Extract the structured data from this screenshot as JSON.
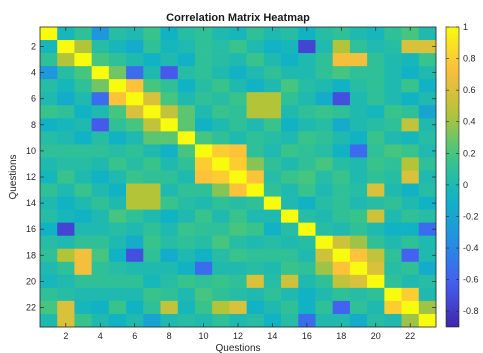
{
  "chart_data": {
    "type": "heatmap",
    "title": "Correlation Matrix Heatmap",
    "xlabel": "Questions",
    "ylabel": "Questions",
    "n": 23,
    "x_ticks": [
      2,
      4,
      6,
      8,
      10,
      12,
      14,
      16,
      18,
      20,
      22
    ],
    "y_ticks": [
      2,
      4,
      6,
      8,
      10,
      12,
      14,
      16,
      18,
      20,
      22
    ],
    "colorbar": {
      "min": -0.9,
      "max": 1.0,
      "ticks": [
        1,
        0.8,
        0.6,
        0.4,
        0.2,
        0,
        -0.2,
        -0.4,
        -0.6,
        -0.8
      ],
      "tick_labels": [
        "1",
        "0.8",
        "0.6",
        "0.4",
        "0.2",
        "0",
        "-0.2",
        "-0.4",
        "-0.6",
        "-0.8"
      ]
    },
    "matrix": [
      [
        1.0,
        -0.05,
        0.1,
        -0.3,
        0.05,
        0.0,
        0.15,
        -0.1,
        0.05,
        0.1,
        0.0,
        -0.05,
        0.1,
        0.0,
        0.05,
        -0.1,
        0.05,
        0.1,
        0.0,
        -0.05,
        0.1,
        0.2,
        0.0
      ],
      [
        -0.05,
        1.0,
        0.45,
        0.05,
        -0.05,
        -0.15,
        0.1,
        -0.05,
        0.0,
        0.1,
        0.05,
        0.15,
        0.0,
        -0.1,
        -0.05,
        -0.75,
        0.0,
        0.45,
        0.1,
        0.0,
        0.05,
        0.6,
        0.6
      ],
      [
        0.1,
        0.45,
        1.0,
        0.2,
        0.1,
        0.0,
        -0.1,
        0.0,
        -0.1,
        0.1,
        0.05,
        0.0,
        0.15,
        0.0,
        -0.1,
        0.0,
        0.1,
        0.7,
        0.7,
        0.1,
        0.0,
        -0.05,
        0.15
      ],
      [
        -0.3,
        0.05,
        0.2,
        1.0,
        0.3,
        -0.55,
        0.0,
        -0.65,
        0.05,
        0.1,
        0.0,
        -0.1,
        0.0,
        0.1,
        0.0,
        0.0,
        0.1,
        0.2,
        0.1,
        0.1,
        0.0,
        -0.1,
        0.0
      ],
      [
        0.05,
        -0.05,
        0.1,
        0.3,
        1.0,
        0.75,
        0.2,
        0.1,
        -0.1,
        0.05,
        0.15,
        0.0,
        -0.1,
        0.0,
        0.2,
        0.05,
        0.0,
        -0.1,
        0.05,
        0.1,
        0.0,
        0.15,
        -0.1
      ],
      [
        0.0,
        -0.15,
        0.0,
        -0.55,
        0.75,
        1.0,
        0.6,
        0.2,
        0.0,
        0.1,
        0.05,
        0.15,
        0.45,
        0.45,
        0.1,
        0.0,
        -0.15,
        -0.7,
        0.0,
        0.1,
        0.0,
        -0.1,
        0.0
      ],
      [
        0.15,
        0.1,
        -0.1,
        0.0,
        0.2,
        0.6,
        1.0,
        0.5,
        0.25,
        0.0,
        0.15,
        0.1,
        0.45,
        0.45,
        0.0,
        0.1,
        0.15,
        0.1,
        0.0,
        -0.05,
        0.15,
        0.1,
        -0.2
      ],
      [
        -0.1,
        -0.05,
        0.0,
        -0.65,
        0.1,
        0.2,
        0.5,
        1.0,
        0.25,
        -0.1,
        0.0,
        0.1,
        0.0,
        0.15,
        -0.1,
        0.0,
        0.05,
        -0.15,
        0.0,
        0.05,
        0.1,
        0.5,
        0.0
      ],
      [
        0.05,
        0.0,
        -0.1,
        0.05,
        -0.1,
        0.0,
        0.25,
        0.25,
        1.0,
        0.2,
        0.1,
        0.0,
        0.1,
        0.05,
        0.0,
        0.15,
        0.1,
        0.0,
        -0.1,
        0.15,
        0.0,
        -0.05,
        0.05
      ],
      [
        0.1,
        0.1,
        0.1,
        0.1,
        0.05,
        0.1,
        0.0,
        -0.1,
        0.2,
        1.0,
        0.8,
        0.75,
        0.1,
        0.0,
        0.15,
        0.1,
        0.05,
        -0.1,
        -0.55,
        0.1,
        0.2,
        0.15,
        0.0
      ],
      [
        0.0,
        0.05,
        0.05,
        0.0,
        0.15,
        0.05,
        0.15,
        0.0,
        0.1,
        0.8,
        1.0,
        0.8,
        0.35,
        0.1,
        0.0,
        0.1,
        0.2,
        0.05,
        0.0,
        0.15,
        0.1,
        0.45,
        0.1
      ],
      [
        -0.05,
        0.15,
        0.0,
        -0.1,
        0.0,
        0.15,
        0.1,
        0.1,
        0.0,
        0.75,
        0.8,
        1.0,
        0.75,
        0.05,
        0.15,
        0.2,
        0.05,
        0.15,
        0.0,
        0.1,
        0.05,
        0.6,
        0.0
      ],
      [
        0.1,
        0.0,
        0.15,
        0.0,
        -0.1,
        0.45,
        0.45,
        0.0,
        0.1,
        0.1,
        0.35,
        0.75,
        1.0,
        0.1,
        0.0,
        0.15,
        0.0,
        0.1,
        0.05,
        0.6,
        0.0,
        -0.1,
        0.05
      ],
      [
        0.0,
        -0.1,
        0.0,
        0.1,
        0.0,
        0.45,
        0.45,
        0.15,
        0.05,
        0.0,
        0.1,
        0.05,
        0.1,
        1.0,
        0.0,
        -0.1,
        0.05,
        0.1,
        0.0,
        0.05,
        0.1,
        0.0,
        -0.1
      ],
      [
        0.05,
        -0.05,
        -0.1,
        0.0,
        0.2,
        0.1,
        0.0,
        -0.1,
        0.0,
        0.15,
        0.0,
        0.15,
        0.0,
        0.0,
        1.0,
        0.05,
        0.0,
        0.1,
        0.15,
        0.55,
        0.0,
        0.1,
        0.05
      ],
      [
        -0.1,
        -0.75,
        0.0,
        0.0,
        0.05,
        0.0,
        0.1,
        0.0,
        0.15,
        0.1,
        0.1,
        0.2,
        0.15,
        -0.1,
        0.05,
        1.0,
        0.05,
        0.0,
        0.1,
        0.0,
        -0.1,
        -0.1,
        -0.55
      ],
      [
        0.05,
        0.0,
        0.1,
        0.1,
        0.0,
        -0.15,
        0.15,
        0.05,
        0.1,
        0.05,
        0.2,
        0.05,
        0.0,
        0.05,
        0.0,
        0.05,
        1.0,
        0.55,
        0.4,
        0.1,
        0.0,
        0.1,
        0.0
      ],
      [
        0.1,
        0.45,
        0.7,
        0.2,
        -0.1,
        -0.7,
        0.1,
        -0.15,
        0.0,
        -0.1,
        0.05,
        0.15,
        0.1,
        0.1,
        0.1,
        0.0,
        0.55,
        1.0,
        0.75,
        0.5,
        0.1,
        -0.6,
        0.0
      ],
      [
        0.0,
        0.1,
        0.7,
        0.1,
        0.05,
        0.0,
        0.0,
        0.0,
        -0.1,
        -0.55,
        0.0,
        0.0,
        0.05,
        0.0,
        0.15,
        0.1,
        0.4,
        0.75,
        1.0,
        0.6,
        0.05,
        0.1,
        -0.15
      ],
      [
        -0.05,
        0.0,
        0.1,
        0.1,
        0.1,
        0.1,
        -0.05,
        0.05,
        0.15,
        0.1,
        0.15,
        0.1,
        0.6,
        0.05,
        0.55,
        0.0,
        0.1,
        0.5,
        0.6,
        1.0,
        0.1,
        0.0,
        0.05
      ],
      [
        0.1,
        0.05,
        0.0,
        0.0,
        0.0,
        0.0,
        0.15,
        0.1,
        0.0,
        0.2,
        0.1,
        0.05,
        0.0,
        0.1,
        0.0,
        -0.1,
        0.0,
        0.1,
        0.05,
        0.1,
        1.0,
        0.8,
        0.0
      ],
      [
        0.2,
        0.6,
        -0.05,
        -0.1,
        0.15,
        -0.1,
        0.1,
        0.5,
        -0.05,
        0.15,
        0.45,
        0.6,
        -0.1,
        0.0,
        0.1,
        -0.1,
        0.1,
        -0.6,
        0.1,
        0.0,
        0.8,
        1.0,
        0.4
      ],
      [
        0.0,
        0.6,
        0.15,
        0.0,
        -0.1,
        0.0,
        -0.2,
        0.0,
        0.05,
        0.0,
        0.1,
        0.0,
        0.05,
        -0.1,
        0.05,
        -0.55,
        0.0,
        0.0,
        -0.15,
        0.05,
        0.0,
        0.4,
        1.0
      ]
    ]
  }
}
